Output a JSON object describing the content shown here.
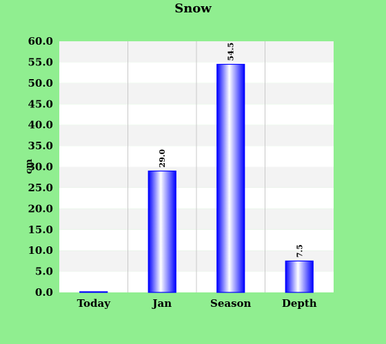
{
  "chart_data": {
    "type": "bar",
    "title": "Snow",
    "xlabel": "",
    "ylabel": "cm",
    "categories": [
      "Today",
      "Jan",
      "Season",
      "Depth"
    ],
    "values": [
      0.0,
      29.0,
      54.5,
      7.5
    ],
    "value_labels": [
      "",
      "29.0",
      "54.5",
      "7.5"
    ],
    "ylim": [
      0,
      60
    ],
    "yticks": [
      "0.0",
      "5.0",
      "10.0",
      "15.0",
      "20.0",
      "25.0",
      "30.0",
      "35.0",
      "40.0",
      "45.0",
      "50.0",
      "55.0",
      "60.0"
    ],
    "grid": true,
    "legend": "none"
  },
  "colors": {
    "background": "#90ee90",
    "plot_band_light": "#f3f3f3",
    "plot_band_white": "#ffffff",
    "bar_edge": "#0000ff",
    "bar_center": "#ffffff",
    "gridline": "#c8c8c8"
  }
}
